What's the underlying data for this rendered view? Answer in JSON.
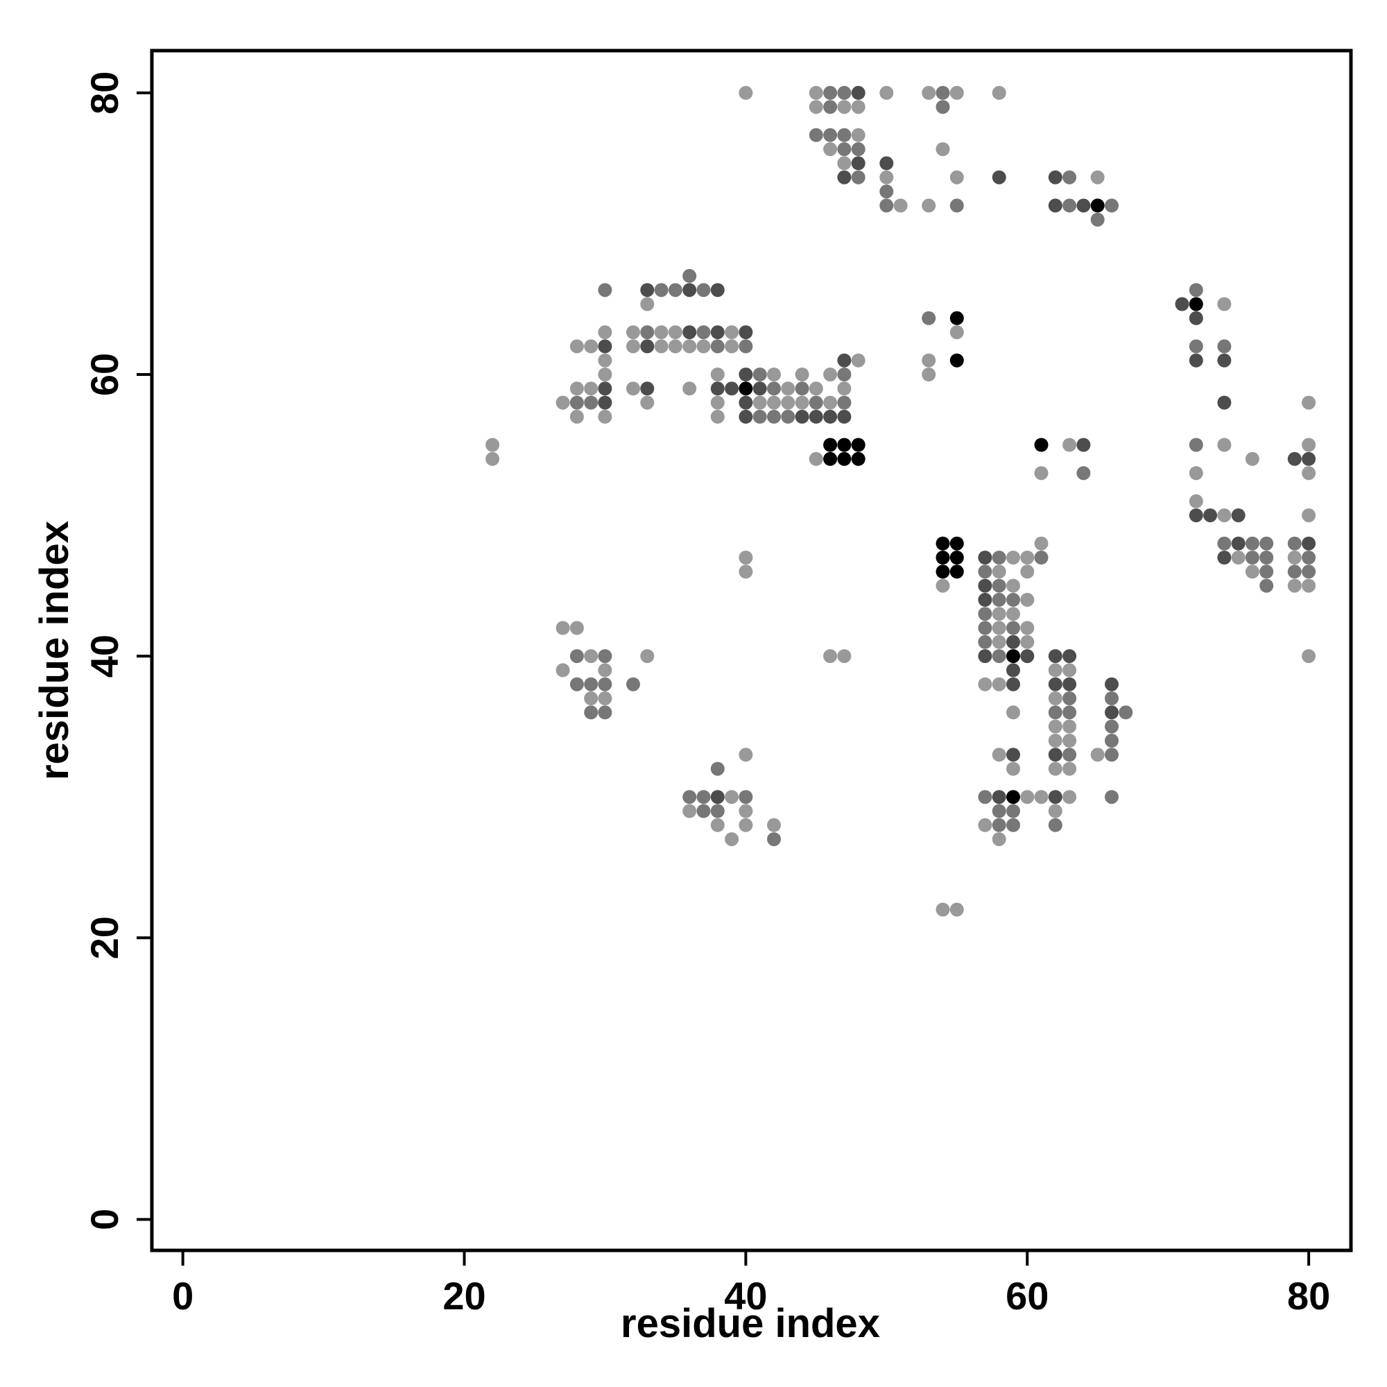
{
  "chart_data": {
    "type": "scatter",
    "title": "",
    "xlabel": "residue index",
    "ylabel": "residue index",
    "xlim": [
      -2.2,
      83
    ],
    "ylim": [
      -2.2,
      83
    ],
    "xticks": [
      0,
      20,
      40,
      60,
      80
    ],
    "yticks": [
      0,
      20,
      40,
      60,
      80
    ],
    "grid": false,
    "legend": "none",
    "value_meaning": "point shade level: 1 = light grey, 2 = mid grey, 3 = dark grey, 4 = black",
    "shade_colors": {
      "1": "#999999",
      "2": "#777777",
      "3": "#4d4d4d",
      "4": "#000000"
    },
    "points": [
      [
        22,
        55,
        1
      ],
      [
        22,
        54,
        1
      ],
      [
        27,
        58,
        1
      ],
      [
        27,
        42,
        1
      ],
      [
        27,
        39,
        1
      ],
      [
        28,
        62,
        1
      ],
      [
        28,
        59,
        1
      ],
      [
        28,
        58,
        2
      ],
      [
        28,
        57,
        1
      ],
      [
        28,
        42,
        1
      ],
      [
        28,
        40,
        2
      ],
      [
        28,
        38,
        2
      ],
      [
        29,
        62,
        1
      ],
      [
        29,
        59,
        1
      ],
      [
        29,
        58,
        2
      ],
      [
        29,
        40,
        1
      ],
      [
        29,
        38,
        2
      ],
      [
        29,
        37,
        1
      ],
      [
        29,
        36,
        2
      ],
      [
        30,
        66,
        2
      ],
      [
        30,
        63,
        1
      ],
      [
        30,
        62,
        3
      ],
      [
        30,
        61,
        1
      ],
      [
        30,
        60,
        1
      ],
      [
        30,
        59,
        3
      ],
      [
        30,
        58,
        3
      ],
      [
        30,
        57,
        1
      ],
      [
        30,
        40,
        2
      ],
      [
        30,
        39,
        1
      ],
      [
        30,
        38,
        2
      ],
      [
        30,
        37,
        1
      ],
      [
        30,
        36,
        2
      ],
      [
        32,
        63,
        1
      ],
      [
        32,
        62,
        1
      ],
      [
        32,
        59,
        1
      ],
      [
        32,
        38,
        2
      ],
      [
        33,
        66,
        3
      ],
      [
        33,
        65,
        1
      ],
      [
        33,
        63,
        2
      ],
      [
        33,
        62,
        3
      ],
      [
        33,
        59,
        3
      ],
      [
        33,
        58,
        1
      ],
      [
        33,
        40,
        1
      ],
      [
        34,
        66,
        2
      ],
      [
        34,
        63,
        1
      ],
      [
        34,
        62,
        1
      ],
      [
        35,
        66,
        2
      ],
      [
        35,
        63,
        1
      ],
      [
        35,
        62,
        1
      ],
      [
        36,
        67,
        2
      ],
      [
        36,
        66,
        3
      ],
      [
        36,
        63,
        3
      ],
      [
        36,
        62,
        1
      ],
      [
        36,
        59,
        1
      ],
      [
        36,
        30,
        2
      ],
      [
        36,
        29,
        1
      ],
      [
        37,
        66,
        2
      ],
      [
        37,
        63,
        2
      ],
      [
        37,
        62,
        1
      ],
      [
        37,
        30,
        2
      ],
      [
        37,
        29,
        2
      ],
      [
        38,
        66,
        3
      ],
      [
        38,
        63,
        3
      ],
      [
        38,
        62,
        2
      ],
      [
        38,
        60,
        1
      ],
      [
        38,
        59,
        3
      ],
      [
        38,
        58,
        1
      ],
      [
        38,
        57,
        1
      ],
      [
        38,
        32,
        2
      ],
      [
        38,
        30,
        3
      ],
      [
        38,
        29,
        2
      ],
      [
        38,
        28,
        1
      ],
      [
        39,
        63,
        1
      ],
      [
        39,
        62,
        1
      ],
      [
        39,
        59,
        3
      ],
      [
        39,
        30,
        1
      ],
      [
        39,
        27,
        1
      ],
      [
        40,
        80,
        1
      ],
      [
        40,
        63,
        3
      ],
      [
        40,
        62,
        2
      ],
      [
        40,
        60,
        3
      ],
      [
        40,
        59,
        4
      ],
      [
        40,
        58,
        3
      ],
      [
        40,
        57,
        3
      ],
      [
        40,
        47,
        1
      ],
      [
        40,
        46,
        1
      ],
      [
        40,
        33,
        1
      ],
      [
        40,
        30,
        2
      ],
      [
        40,
        29,
        1
      ],
      [
        40,
        28,
        1
      ],
      [
        41,
        60,
        2
      ],
      [
        41,
        59,
        3
      ],
      [
        41,
        58,
        1
      ],
      [
        41,
        57,
        2
      ],
      [
        42,
        60,
        1
      ],
      [
        42,
        59,
        2
      ],
      [
        42,
        58,
        1
      ],
      [
        42,
        57,
        2
      ],
      [
        42,
        28,
        1
      ],
      [
        42,
        27,
        2
      ],
      [
        43,
        59,
        1
      ],
      [
        43,
        58,
        1
      ],
      [
        43,
        57,
        2
      ],
      [
        44,
        60,
        1
      ],
      [
        44,
        59,
        2
      ],
      [
        44,
        58,
        1
      ],
      [
        44,
        57,
        3
      ],
      [
        45,
        80,
        1
      ],
      [
        45,
        79,
        1
      ],
      [
        45,
        77,
        2
      ],
      [
        45,
        59,
        1
      ],
      [
        45,
        58,
        2
      ],
      [
        45,
        57,
        3
      ],
      [
        45,
        54,
        1
      ],
      [
        46,
        80,
        2
      ],
      [
        46,
        79,
        2
      ],
      [
        46,
        77,
        2
      ],
      [
        46,
        76,
        1
      ],
      [
        46,
        60,
        1
      ],
      [
        46,
        58,
        1
      ],
      [
        46,
        57,
        3
      ],
      [
        46,
        55,
        4
      ],
      [
        46,
        54,
        4
      ],
      [
        46,
        40,
        1
      ],
      [
        47,
        80,
        2
      ],
      [
        47,
        79,
        1
      ],
      [
        47,
        77,
        2
      ],
      [
        47,
        76,
        2
      ],
      [
        47,
        75,
        1
      ],
      [
        47,
        74,
        3
      ],
      [
        47,
        61,
        3
      ],
      [
        47,
        60,
        2
      ],
      [
        47,
        59,
        1
      ],
      [
        47,
        58,
        2
      ],
      [
        47,
        57,
        3
      ],
      [
        47,
        55,
        4
      ],
      [
        47,
        54,
        4
      ],
      [
        47,
        40,
        1
      ],
      [
        48,
        80,
        3
      ],
      [
        48,
        79,
        1
      ],
      [
        48,
        77,
        1
      ],
      [
        48,
        76,
        2
      ],
      [
        48,
        75,
        3
      ],
      [
        48,
        74,
        2
      ],
      [
        48,
        61,
        1
      ],
      [
        48,
        55,
        4
      ],
      [
        48,
        54,
        4
      ],
      [
        50,
        80,
        1
      ],
      [
        50,
        75,
        3
      ],
      [
        50,
        74,
        1
      ],
      [
        50,
        73,
        2
      ],
      [
        50,
        72,
        2
      ],
      [
        51,
        72,
        1
      ],
      [
        53,
        80,
        1
      ],
      [
        53,
        72,
        1
      ],
      [
        53,
        64,
        2
      ],
      [
        53,
        61,
        1
      ],
      [
        53,
        60,
        1
      ],
      [
        54,
        80,
        2
      ],
      [
        54,
        79,
        2
      ],
      [
        54,
        76,
        1
      ],
      [
        54,
        48,
        4
      ],
      [
        54,
        47,
        4
      ],
      [
        54,
        46,
        4
      ],
      [
        54,
        45,
        1
      ],
      [
        54,
        22,
        1
      ],
      [
        55,
        80,
        1
      ],
      [
        55,
        74,
        1
      ],
      [
        55,
        72,
        2
      ],
      [
        55,
        64,
        4
      ],
      [
        55,
        63,
        1
      ],
      [
        55,
        61,
        4
      ],
      [
        55,
        48,
        4
      ],
      [
        55,
        47,
        4
      ],
      [
        55,
        46,
        4
      ],
      [
        55,
        22,
        1
      ],
      [
        57,
        47,
        3
      ],
      [
        57,
        46,
        2
      ],
      [
        57,
        45,
        3
      ],
      [
        57,
        44,
        3
      ],
      [
        57,
        43,
        2
      ],
      [
        57,
        42,
        2
      ],
      [
        57,
        41,
        2
      ],
      [
        57,
        40,
        3
      ],
      [
        57,
        38,
        1
      ],
      [
        57,
        30,
        2
      ],
      [
        57,
        28,
        1
      ],
      [
        58,
        80,
        1
      ],
      [
        58,
        74,
        3
      ],
      [
        58,
        47,
        2
      ],
      [
        58,
        46,
        1
      ],
      [
        58,
        45,
        2
      ],
      [
        58,
        44,
        2
      ],
      [
        58,
        43,
        1
      ],
      [
        58,
        42,
        1
      ],
      [
        58,
        41,
        1
      ],
      [
        58,
        40,
        2
      ],
      [
        58,
        38,
        1
      ],
      [
        58,
        33,
        1
      ],
      [
        58,
        30,
        3
      ],
      [
        58,
        29,
        2
      ],
      [
        58,
        28,
        2
      ],
      [
        58,
        27,
        1
      ],
      [
        59,
        47,
        1
      ],
      [
        59,
        45,
        1
      ],
      [
        59,
        44,
        2
      ],
      [
        59,
        43,
        1
      ],
      [
        59,
        42,
        2
      ],
      [
        59,
        41,
        3
      ],
      [
        59,
        40,
        4
      ],
      [
        59,
        39,
        3
      ],
      [
        59,
        38,
        3
      ],
      [
        59,
        36,
        1
      ],
      [
        59,
        33,
        3
      ],
      [
        59,
        32,
        1
      ],
      [
        59,
        30,
        4
      ],
      [
        59,
        29,
        2
      ],
      [
        59,
        28,
        2
      ],
      [
        60,
        47,
        1
      ],
      [
        60,
        46,
        1
      ],
      [
        60,
        44,
        1
      ],
      [
        60,
        42,
        1
      ],
      [
        60,
        41,
        1
      ],
      [
        60,
        40,
        3
      ],
      [
        60,
        30,
        1
      ],
      [
        61,
        55,
        4
      ],
      [
        61,
        53,
        1
      ],
      [
        61,
        48,
        1
      ],
      [
        61,
        47,
        2
      ],
      [
        61,
        30,
        1
      ],
      [
        62,
        74,
        3
      ],
      [
        62,
        72,
        3
      ],
      [
        62,
        40,
        3
      ],
      [
        62,
        39,
        1
      ],
      [
        62,
        38,
        3
      ],
      [
        62,
        37,
        1
      ],
      [
        62,
        36,
        2
      ],
      [
        62,
        35,
        1
      ],
      [
        62,
        34,
        1
      ],
      [
        62,
        33,
        3
      ],
      [
        62,
        32,
        1
      ],
      [
        62,
        30,
        3
      ],
      [
        62,
        29,
        1
      ],
      [
        62,
        28,
        2
      ],
      [
        63,
        74,
        2
      ],
      [
        63,
        72,
        2
      ],
      [
        63,
        55,
        1
      ],
      [
        63,
        40,
        3
      ],
      [
        63,
        39,
        1
      ],
      [
        63,
        38,
        3
      ],
      [
        63,
        37,
        2
      ],
      [
        63,
        36,
        2
      ],
      [
        63,
        35,
        1
      ],
      [
        63,
        34,
        1
      ],
      [
        63,
        33,
        2
      ],
      [
        63,
        32,
        1
      ],
      [
        63,
        30,
        1
      ],
      [
        64,
        72,
        3
      ],
      [
        64,
        55,
        3
      ],
      [
        64,
        53,
        2
      ],
      [
        65,
        74,
        1
      ],
      [
        65,
        72,
        4
      ],
      [
        65,
        71,
        2
      ],
      [
        65,
        33,
        1
      ],
      [
        66,
        72,
        2
      ],
      [
        66,
        38,
        3
      ],
      [
        66,
        37,
        2
      ],
      [
        66,
        36,
        3
      ],
      [
        66,
        35,
        2
      ],
      [
        66,
        34,
        2
      ],
      [
        66,
        33,
        2
      ],
      [
        66,
        30,
        2
      ],
      [
        67,
        36,
        2
      ],
      [
        71,
        65,
        3
      ],
      [
        72,
        66,
        2
      ],
      [
        72,
        65,
        4
      ],
      [
        72,
        64,
        3
      ],
      [
        72,
        62,
        2
      ],
      [
        72,
        61,
        3
      ],
      [
        72,
        55,
        2
      ],
      [
        72,
        53,
        1
      ],
      [
        72,
        51,
        1
      ],
      [
        72,
        50,
        3
      ],
      [
        73,
        50,
        3
      ],
      [
        74,
        65,
        1
      ],
      [
        74,
        62,
        2
      ],
      [
        74,
        61,
        3
      ],
      [
        74,
        58,
        3
      ],
      [
        74,
        55,
        1
      ],
      [
        74,
        50,
        1
      ],
      [
        74,
        48,
        2
      ],
      [
        74,
        47,
        3
      ],
      [
        75,
        50,
        3
      ],
      [
        75,
        48,
        3
      ],
      [
        75,
        47,
        1
      ],
      [
        76,
        54,
        1
      ],
      [
        76,
        48,
        2
      ],
      [
        76,
        47,
        2
      ],
      [
        76,
        46,
        1
      ],
      [
        77,
        48,
        2
      ],
      [
        77,
        47,
        2
      ],
      [
        77,
        46,
        2
      ],
      [
        77,
        45,
        2
      ],
      [
        79,
        54,
        3
      ],
      [
        79,
        48,
        2
      ],
      [
        79,
        47,
        1
      ],
      [
        79,
        46,
        2
      ],
      [
        79,
        45,
        1
      ],
      [
        80,
        58,
        1
      ],
      [
        80,
        55,
        1
      ],
      [
        80,
        54,
        3
      ],
      [
        80,
        53,
        1
      ],
      [
        80,
        50,
        1
      ],
      [
        80,
        48,
        3
      ],
      [
        80,
        47,
        2
      ],
      [
        80,
        46,
        2
      ],
      [
        80,
        45,
        1
      ],
      [
        80,
        40,
        1
      ]
    ]
  }
}
